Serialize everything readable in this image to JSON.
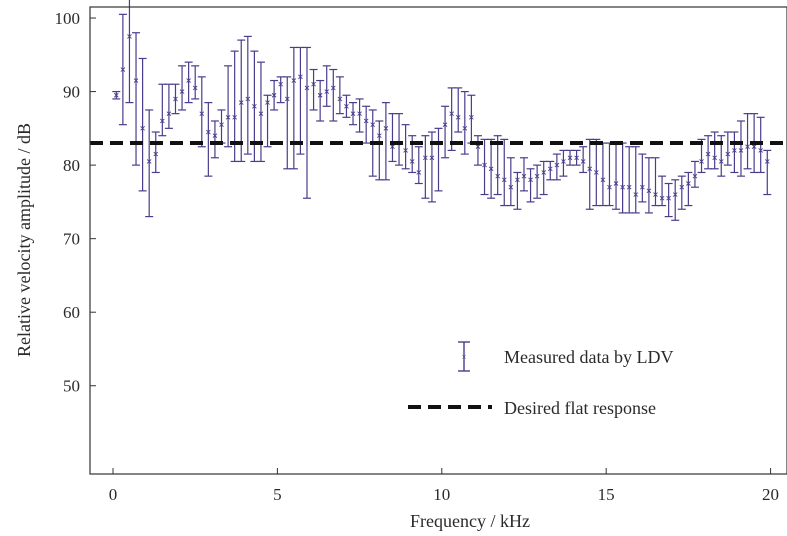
{
  "chart_data": {
    "type": "scatter",
    "title": "",
    "xlabel": "Frequency / kHz",
    "ylabel": "Relative velocity amplitude / dB",
    "xlim": [
      -0.7,
      20.5
    ],
    "ylim": [
      38,
      101.5
    ],
    "x_ticks": [
      0,
      5,
      10,
      15,
      20
    ],
    "y_ticks": [
      50,
      60,
      70,
      80,
      90,
      100
    ],
    "x_tick_labels": [
      "0",
      "5",
      "10",
      "15",
      "20"
    ],
    "y_tick_labels": [
      "50",
      "60",
      "70",
      "80",
      "90",
      "100"
    ],
    "grid": false,
    "legend_position": "center-right",
    "colors": {
      "data": "#4b3c8c",
      "reference": "#111111",
      "axes": "#333333"
    },
    "series": [
      {
        "name": "Measured data by LDV",
        "kind": "errorbar",
        "color": "#4b3c8c",
        "x": [
          0.1,
          0.3,
          0.5,
          0.7,
          0.9,
          1.1,
          1.3,
          1.5,
          1.7,
          1.9,
          2.1,
          2.3,
          2.5,
          2.7,
          2.9,
          3.1,
          3.3,
          3.5,
          3.7,
          3.9,
          4.1,
          4.3,
          4.5,
          4.7,
          4.9,
          5.1,
          5.3,
          5.5,
          5.7,
          5.9,
          6.1,
          6.3,
          6.5,
          6.7,
          6.9,
          7.1,
          7.3,
          7.5,
          7.7,
          7.9,
          8.1,
          8.3,
          8.5,
          8.7,
          8.9,
          9.1,
          9.3,
          9.5,
          9.7,
          9.9,
          10.1,
          10.3,
          10.5,
          10.7,
          10.9,
          11.1,
          11.3,
          11.5,
          11.7,
          11.9,
          12.1,
          12.3,
          12.5,
          12.7,
          12.9,
          13.1,
          13.3,
          13.5,
          13.7,
          13.9,
          14.1,
          14.3,
          14.5,
          14.7,
          14.9,
          15.1,
          15.3,
          15.5,
          15.7,
          15.9,
          16.1,
          16.3,
          16.5,
          16.7,
          16.9,
          17.1,
          17.3,
          17.5,
          17.7,
          17.9,
          18.1,
          18.3,
          18.5,
          18.7,
          18.9,
          19.1,
          19.3,
          19.5,
          19.7,
          19.9
        ],
        "y": [
          89.5,
          93.0,
          97.5,
          91.5,
          85.0,
          80.5,
          81.5,
          86.0,
          87.0,
          89.0,
          90.0,
          91.5,
          90.5,
          87.0,
          84.5,
          84.0,
          85.5,
          86.5,
          86.5,
          88.5,
          89.0,
          88.0,
          87.0,
          88.5,
          89.5,
          91.0,
          89.0,
          91.5,
          92.0,
          90.5,
          91.0,
          89.5,
          90.0,
          90.5,
          89.0,
          88.0,
          87.0,
          87.0,
          86.0,
          85.5,
          84.0,
          85.0,
          82.5,
          83.0,
          82.0,
          80.5,
          79.0,
          81.0,
          81.0,
          83.0,
          85.5,
          87.0,
          86.5,
          85.0,
          86.5,
          82.5,
          80.0,
          79.5,
          78.5,
          78.0,
          77.0,
          78.0,
          78.5,
          78.0,
          78.5,
          79.0,
          79.5,
          80.0,
          80.5,
          81.0,
          81.0,
          80.5,
          79.5,
          79.0,
          78.0,
          77.0,
          77.5,
          77.0,
          77.0,
          76.0,
          77.0,
          76.5,
          76.0,
          75.5,
          75.5,
          76.0,
          77.0,
          77.5,
          78.5,
          80.5,
          81.5,
          81.0,
          80.5,
          81.5,
          82.0,
          82.0,
          82.5,
          82.5,
          82.0,
          80.5
        ],
        "yerr_low": [
          0.5,
          7.5,
          9.0,
          11.5,
          8.5,
          7.5,
          2.5,
          2.0,
          2.0,
          2.0,
          2.5,
          3.0,
          1.5,
          4.5,
          6.0,
          3.0,
          2.5,
          4.0,
          6.0,
          8.0,
          7.5,
          7.5,
          6.5,
          6.0,
          2.0,
          2.5,
          9.5,
          12.0,
          10.5,
          15.0,
          3.5,
          3.5,
          2.0,
          4.5,
          2.0,
          1.5,
          1.5,
          2.5,
          3.0,
          7.0,
          6.0,
          7.0,
          2.0,
          3.0,
          2.5,
          1.5,
          1.5,
          5.5,
          6.0,
          6.5,
          4.5,
          5.0,
          2.0,
          3.5,
          3.5,
          2.5,
          4.0,
          4.0,
          2.5,
          3.5,
          2.5,
          4.0,
          2.0,
          3.0,
          3.0,
          3.0,
          1.5,
          2.0,
          2.0,
          1.0,
          1.0,
          1.5,
          5.5,
          4.5,
          3.5,
          2.5,
          3.5,
          3.5,
          3.5,
          2.5,
          2.0,
          3.0,
          1.5,
          1.0,
          2.5,
          3.5,
          3.0,
          3.0,
          1.5,
          1.5,
          2.0,
          1.5,
          2.0,
          1.5,
          3.0,
          3.5,
          3.0,
          3.5,
          3.0,
          4.5
        ],
        "yerr_high": [
          0.5,
          7.5,
          6.0,
          6.5,
          9.5,
          7.0,
          3.0,
          5.0,
          4.0,
          2.0,
          3.5,
          2.5,
          3.0,
          5.0,
          4.0,
          2.0,
          2.0,
          7.0,
          9.0,
          8.5,
          8.5,
          7.5,
          7.0,
          1.0,
          2.0,
          1.0,
          3.0,
          4.5,
          4.0,
          5.5,
          2.0,
          2.0,
          3.5,
          2.5,
          3.0,
          1.5,
          1.5,
          2.0,
          2.0,
          2.0,
          2.0,
          3.5,
          4.5,
          4.0,
          3.5,
          3.5,
          3.5,
          3.0,
          3.5,
          2.0,
          2.5,
          3.5,
          4.0,
          5.0,
          3.0,
          1.5,
          3.5,
          4.0,
          5.5,
          5.5,
          4.0,
          1.0,
          2.5,
          1.5,
          1.5,
          1.5,
          1.0,
          1.5,
          1.5,
          1.0,
          1.0,
          2.0,
          4.0,
          4.5,
          5.0,
          6.0,
          5.5,
          6.0,
          5.5,
          6.5,
          4.5,
          4.5,
          5.0,
          3.0,
          2.0,
          2.0,
          1.5,
          1.5,
          2.0,
          3.0,
          2.5,
          3.5,
          3.5,
          3.0,
          2.5,
          4.0,
          4.5,
          4.5,
          4.5,
          1.5
        ]
      },
      {
        "name": "Desired flat response",
        "kind": "reference-line",
        "color": "#111111",
        "x": [
          -0.7,
          20.5
        ],
        "y": [
          83,
          83
        ]
      }
    ]
  }
}
